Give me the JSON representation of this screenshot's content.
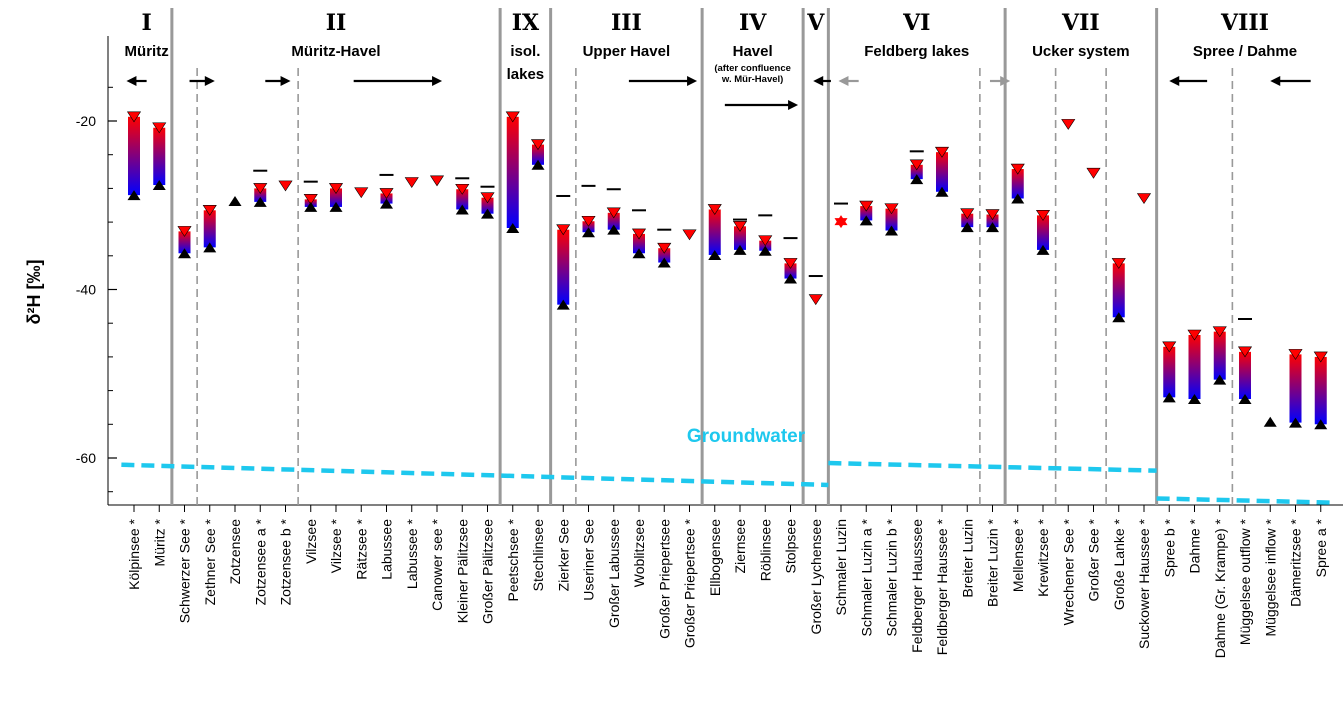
{
  "chart_data": {
    "type": "range-bar",
    "ylabel": "δ²H [‰]",
    "yticks": [
      -20,
      -40,
      -60
    ],
    "ylim": [
      -66,
      -12
    ],
    "categories": [
      "Kölpinsee *",
      "Müritz *",
      "Schwerzer See *",
      "Zethner See *",
      "Zotzensee",
      "Zotzensee a *",
      "Zotzensee b *",
      "Vilzsee",
      "Vilzsee *",
      "Rätzsee *",
      "Labussee",
      "Labussee *",
      "Canower see *",
      "Kleiner Pälitzsee",
      "Großer Pälitzsee",
      "Peetschsee *",
      "Stechlinsee",
      "Zierker See",
      "Useriner See",
      "Großer Labussee",
      "Woblitzsee",
      "Großer Priepertsee",
      "Großer Priepertsee *",
      "Ellbogensee",
      "Ziernsee",
      "Röblinsee",
      "Stolpsee",
      "Großer Lychensee",
      "Schmaler Luzin",
      "Schmaler Luzin a *",
      "Schmaler Luzin b *",
      "Feldberger Hausssee",
      "Feldberger Haussee *",
      "Breiter Luzin",
      "Breiter Luzin *",
      "Mellensee *",
      "Krewitzsee *",
      "Wrechener See *",
      "Großer See *",
      "Große Lanke *",
      "Suckower Haussee *",
      "Spree b *",
      "Dahme *",
      "Dahme (Gr. Krampe) *",
      "Müggelsee outflow *",
      "Müggelsee inflow *",
      "Dämeritzsee *",
      "Spree a *"
    ],
    "series": [
      {
        "name": "",
        "ranges": [
          [
            -19.5,
            -28.8
          ],
          [
            -20.8,
            -27.6
          ],
          [
            -33.1,
            -35.7
          ],
          [
            -30.6,
            -35.0
          ],
          null,
          [
            -28.0,
            -29.6
          ],
          null,
          [
            -29.3,
            -30.2
          ],
          [
            -28.0,
            -30.2
          ],
          null,
          [
            -28.6,
            -29.8
          ],
          null,
          null,
          [
            -28.1,
            -30.5
          ],
          [
            -29.1,
            -31.0
          ],
          [
            -19.5,
            -32.7
          ],
          [
            -22.8,
            -25.2
          ],
          [
            -32.9,
            -41.8
          ],
          [
            -31.9,
            -33.2
          ],
          [
            -30.9,
            -32.9
          ],
          [
            -33.4,
            -35.7
          ],
          [
            -35.1,
            -36.8
          ],
          null,
          [
            -30.5,
            -35.9
          ],
          [
            -32.5,
            -35.3
          ],
          [
            -34.2,
            -35.4
          ],
          [
            -36.9,
            -38.7
          ],
          null,
          null,
          [
            -30.1,
            -31.8
          ],
          [
            -30.4,
            -33.0
          ],
          [
            -25.2,
            -26.9
          ],
          [
            -23.7,
            -28.4
          ],
          [
            -31.0,
            -32.6
          ],
          [
            -31.1,
            -32.6
          ],
          [
            -25.7,
            -29.2
          ],
          [
            -31.2,
            -35.3
          ],
          null,
          null,
          [
            -36.9,
            -43.3
          ],
          null,
          [
            -46.8,
            -52.8
          ],
          [
            -45.4,
            -53.0
          ],
          [
            -45.0,
            -50.7
          ],
          [
            -47.4,
            -53.0
          ],
          null,
          [
            -47.7,
            -55.8
          ],
          [
            -48.0,
            -56.0
          ]
        ]
      }
    ],
    "single_points": [
      {
        "category": "Zotzensee",
        "value": -29.5,
        "marker": "black-up-triangle"
      },
      {
        "category": "Zotzensee b *",
        "value": -27.7,
        "marker": "red-down-triangle"
      },
      {
        "category": "Rätzsee *",
        "value": -28.5,
        "marker": "red-down-triangle"
      },
      {
        "category": "Labussee *",
        "value": -27.3,
        "marker": "red-down-triangle"
      },
      {
        "category": "Canower see *",
        "value": -27.1,
        "marker": "red-down-triangle"
      },
      {
        "category": "Großer Priepertsee *",
        "value": -33.5,
        "marker": "red-down-triangle"
      },
      {
        "category": "Großer Lychensee",
        "value": -41.2,
        "marker": "red-down-triangle"
      },
      {
        "category": "Schmaler Luzin",
        "value": -32.0,
        "marker": "red-star"
      },
      {
        "category": "Wrechener See *",
        "value": -20.4,
        "marker": "red-down-triangle"
      },
      {
        "category": "Großer See *",
        "value": -26.2,
        "marker": "red-down-triangle"
      },
      {
        "category": "Suckower Haussee *",
        "value": -29.2,
        "marker": "red-down-triangle"
      },
      {
        "category": "Müggelsee inflow *",
        "value": -55.7,
        "marker": "black-up-triangle"
      }
    ],
    "bars_dash": [
      {
        "category": "Zotzensee a *",
        "value": -25.9
      },
      {
        "category": "Vilzsee",
        "value": -27.2
      },
      {
        "category": "Labussee",
        "value": -26.4
      },
      {
        "category": "Kleiner Pälitzsee",
        "value": -26.8
      },
      {
        "category": "Großer Pälitzsee",
        "value": -27.8
      },
      {
        "category": "Zierker See",
        "value": -28.9
      },
      {
        "category": "Useriner See",
        "value": -27.7
      },
      {
        "category": "Großer Labussee",
        "value": -28.1
      },
      {
        "category": "Woblitzsee",
        "value": -30.6
      },
      {
        "category": "Großer Priepertsee",
        "value": -32.9
      },
      {
        "category": "Ziernsee",
        "value": -31.7
      },
      {
        "category": "Röblinsee",
        "value": -31.2
      },
      {
        "category": "Stolpsee",
        "value": -33.9
      },
      {
        "category": "Großer Lychensee",
        "value": -38.4
      },
      {
        "category": "Schmaler Luzin",
        "value": -29.8
      },
      {
        "category": "Feldberger Hausssee",
        "value": -23.6
      },
      {
        "category": "Müggelsee outflow *",
        "value": -43.5
      }
    ],
    "segments": [
      {
        "roman": "I",
        "name": "Müritz",
        "from": 0,
        "to": 1,
        "arrows": [
          {
            "dir": "left",
            "span": [
              -0.3,
              0.5
            ],
            "color": "#000"
          }
        ]
      },
      {
        "roman": "II",
        "name": "Müritz-Havel",
        "from": 2,
        "to": 14,
        "arrows": [
          {
            "dir": "right",
            "span": [
              2.2,
              3.2
            ],
            "color": "#000"
          },
          {
            "dir": "right",
            "span": [
              5.2,
              6.2
            ],
            "color": "#000"
          },
          {
            "dir": "right",
            "span": [
              8.7,
              12.2
            ],
            "color": "#000"
          }
        ]
      },
      {
        "roman": "IX",
        "name": "isol.",
        "name2": "lakes",
        "from": 15,
        "to": 16,
        "arrows": []
      },
      {
        "roman": "III",
        "name": "Upper Havel",
        "from": 17,
        "to": 22,
        "arrows": [
          {
            "dir": "right",
            "span": [
              19.6,
              22.3
            ],
            "color": "#000"
          }
        ]
      },
      {
        "roman": "IV",
        "name": "Havel",
        "from": 23,
        "to": 26,
        "small": [
          "(after confluence",
          "w. Mür-Havel)"
        ],
        "arrows": [
          {
            "dir": "right",
            "span": [
              23.4,
              26.3
            ],
            "color": "#000"
          }
        ]
      },
      {
        "roman": "V",
        "name": "",
        "from": 27,
        "to": 27,
        "arrows": [
          {
            "dir": "left",
            "span": [
              26.9,
              27.6
            ],
            "color": "#000"
          }
        ]
      },
      {
        "roman": "VI",
        "name": "Feldberg lakes",
        "from": 28,
        "to": 34,
        "arrows": [
          {
            "dir": "left",
            "span": [
              27.9,
              28.7
            ],
            "color": "#999999"
          },
          {
            "dir": "right",
            "span": [
              33.9,
              34.7
            ],
            "color": "#999999"
          }
        ]
      },
      {
        "roman": "VII",
        "name": "Ucker system",
        "from": 35,
        "to": 40,
        "arrows": []
      },
      {
        "roman": "VIII",
        "name": "Spree / Dahme",
        "from": 41,
        "to": 47,
        "arrows": [
          {
            "dir": "left",
            "span": [
              41.0,
              42.5
            ],
            "color": "#000"
          },
          {
            "dir": "left",
            "span": [
              45.0,
              46.6
            ],
            "color": "#000"
          }
        ]
      }
    ],
    "dashed_dividers": [
      2.5,
      6.5,
      17.5,
      33.5,
      36.5,
      38.5,
      43.5
    ],
    "solid_dividers": [
      1.5,
      14.5,
      16.5,
      22.5,
      26.5,
      27.5,
      34.5,
      40.5
    ],
    "groundwater": {
      "label": "Groundwater",
      "color": "#1ec8ee",
      "lines": [
        {
          "from": -0.5,
          "to": 27.5,
          "y0": -60.8,
          "y1": -63.2
        },
        {
          "from": 27.5,
          "to": 40.5,
          "y0": -60.6,
          "y1": -61.5
        },
        {
          "from": 40.5,
          "to": 47.5,
          "y0": -64.8,
          "y1": -65.3
        }
      ]
    },
    "colors": {
      "bar_top": "#ff0000",
      "bar_bottom": "#0000ff",
      "up_triangle": "#000000",
      "down_triangle": "#ff0000"
    }
  }
}
